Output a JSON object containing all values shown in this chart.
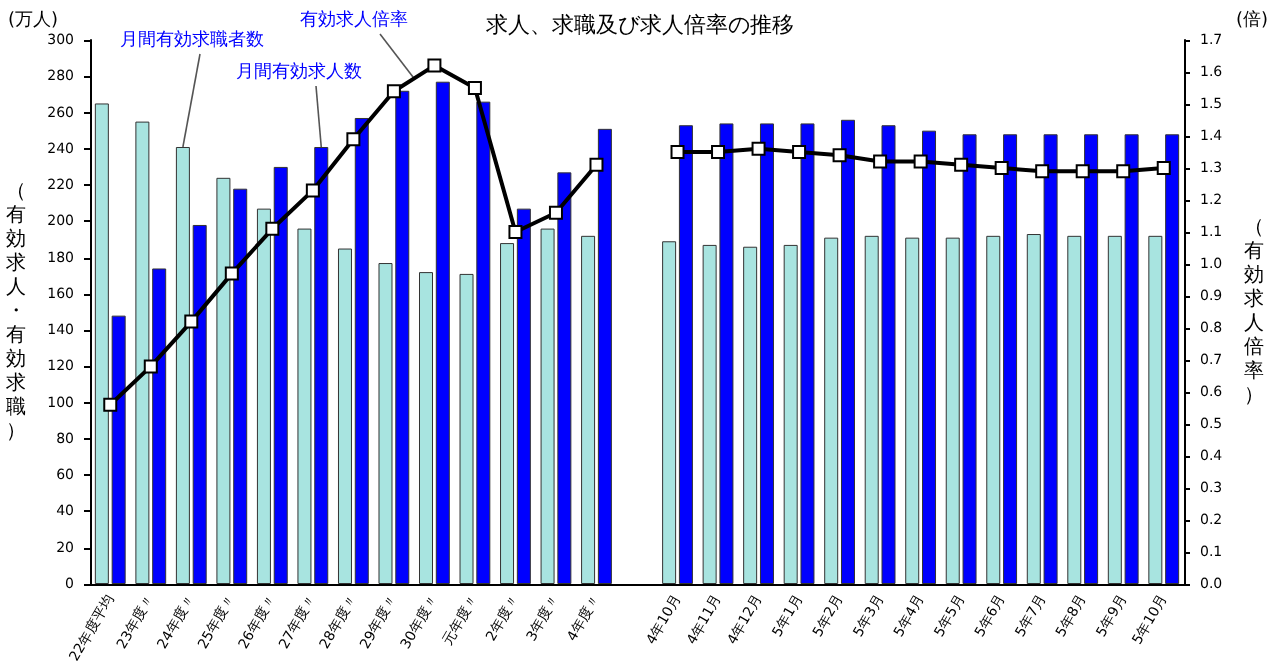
{
  "chart_data": {
    "type": "bar",
    "title": "求人、求職及び求人倍率の推移",
    "ylabel": "（有効求人・有効求職）",
    "y2label": "（有効求人倍率）",
    "annotations": [
      "(万人)",
      "(倍)"
    ],
    "categories": [
      "22年度平均",
      "23年度〃",
      "24年度〃",
      "25年度〃",
      "26年度〃",
      "27年度〃",
      "28年度〃",
      "29年度〃",
      "30年度〃",
      "元年度〃",
      "2年度〃",
      "3年度〃",
      "4年度〃",
      null,
      "4年10月",
      "4年11月",
      "4年12月",
      "5年1月",
      "5年2月",
      "5年3月",
      "5年4月",
      "5年5月",
      "5年6月",
      "5年7月",
      "5年8月",
      "5年9月",
      "5年10月"
    ],
    "series": [
      {
        "name": "月間有効求職者数",
        "color": "#a8e4e0",
        "values": [
          265,
          255,
          241,
          224,
          207,
          196,
          185,
          177,
          172,
          171,
          188,
          196,
          192,
          null,
          189,
          187,
          186,
          187,
          191,
          192,
          191,
          191,
          192,
          193,
          192,
          192,
          192
        ]
      },
      {
        "name": "月間有効求人数",
        "color": "#0000ff",
        "values": [
          148,
          174,
          198,
          218,
          230,
          241,
          257,
          272,
          277,
          266,
          207,
          227,
          251,
          null,
          253,
          254,
          254,
          254,
          256,
          253,
          250,
          248,
          248,
          248,
          248,
          248,
          248
        ]
      },
      {
        "name": "有効求人倍率",
        "type": "line",
        "axis": "y2",
        "color": "#000000",
        "marker": "square",
        "values": [
          0.56,
          0.68,
          0.82,
          0.97,
          1.11,
          1.23,
          1.39,
          1.54,
          1.62,
          1.55,
          1.1,
          1.16,
          1.31,
          null,
          1.35,
          1.35,
          1.36,
          1.35,
          1.34,
          1.32,
          1.32,
          1.31,
          1.3,
          1.29,
          1.29,
          1.29,
          1.3
        ]
      }
    ],
    "ylim": [
      0,
      300
    ],
    "yticks": [
      0,
      20,
      40,
      60,
      80,
      100,
      120,
      140,
      160,
      180,
      200,
      220,
      240,
      260,
      280,
      300
    ],
    "y2lim": [
      0,
      1.7
    ],
    "y2ticks": [
      {
        "value": 0,
        "label": "0.0"
      },
      0.1,
      0.2,
      0.3,
      0.4,
      0.5,
      0.6,
      0.7,
      0.8,
      0.9,
      {
        "value": 1,
        "label": "1.0"
      },
      1.1,
      1.2,
      1.3,
      1.4,
      1.5,
      1.6,
      1.7
    ],
    "grid": false
  }
}
